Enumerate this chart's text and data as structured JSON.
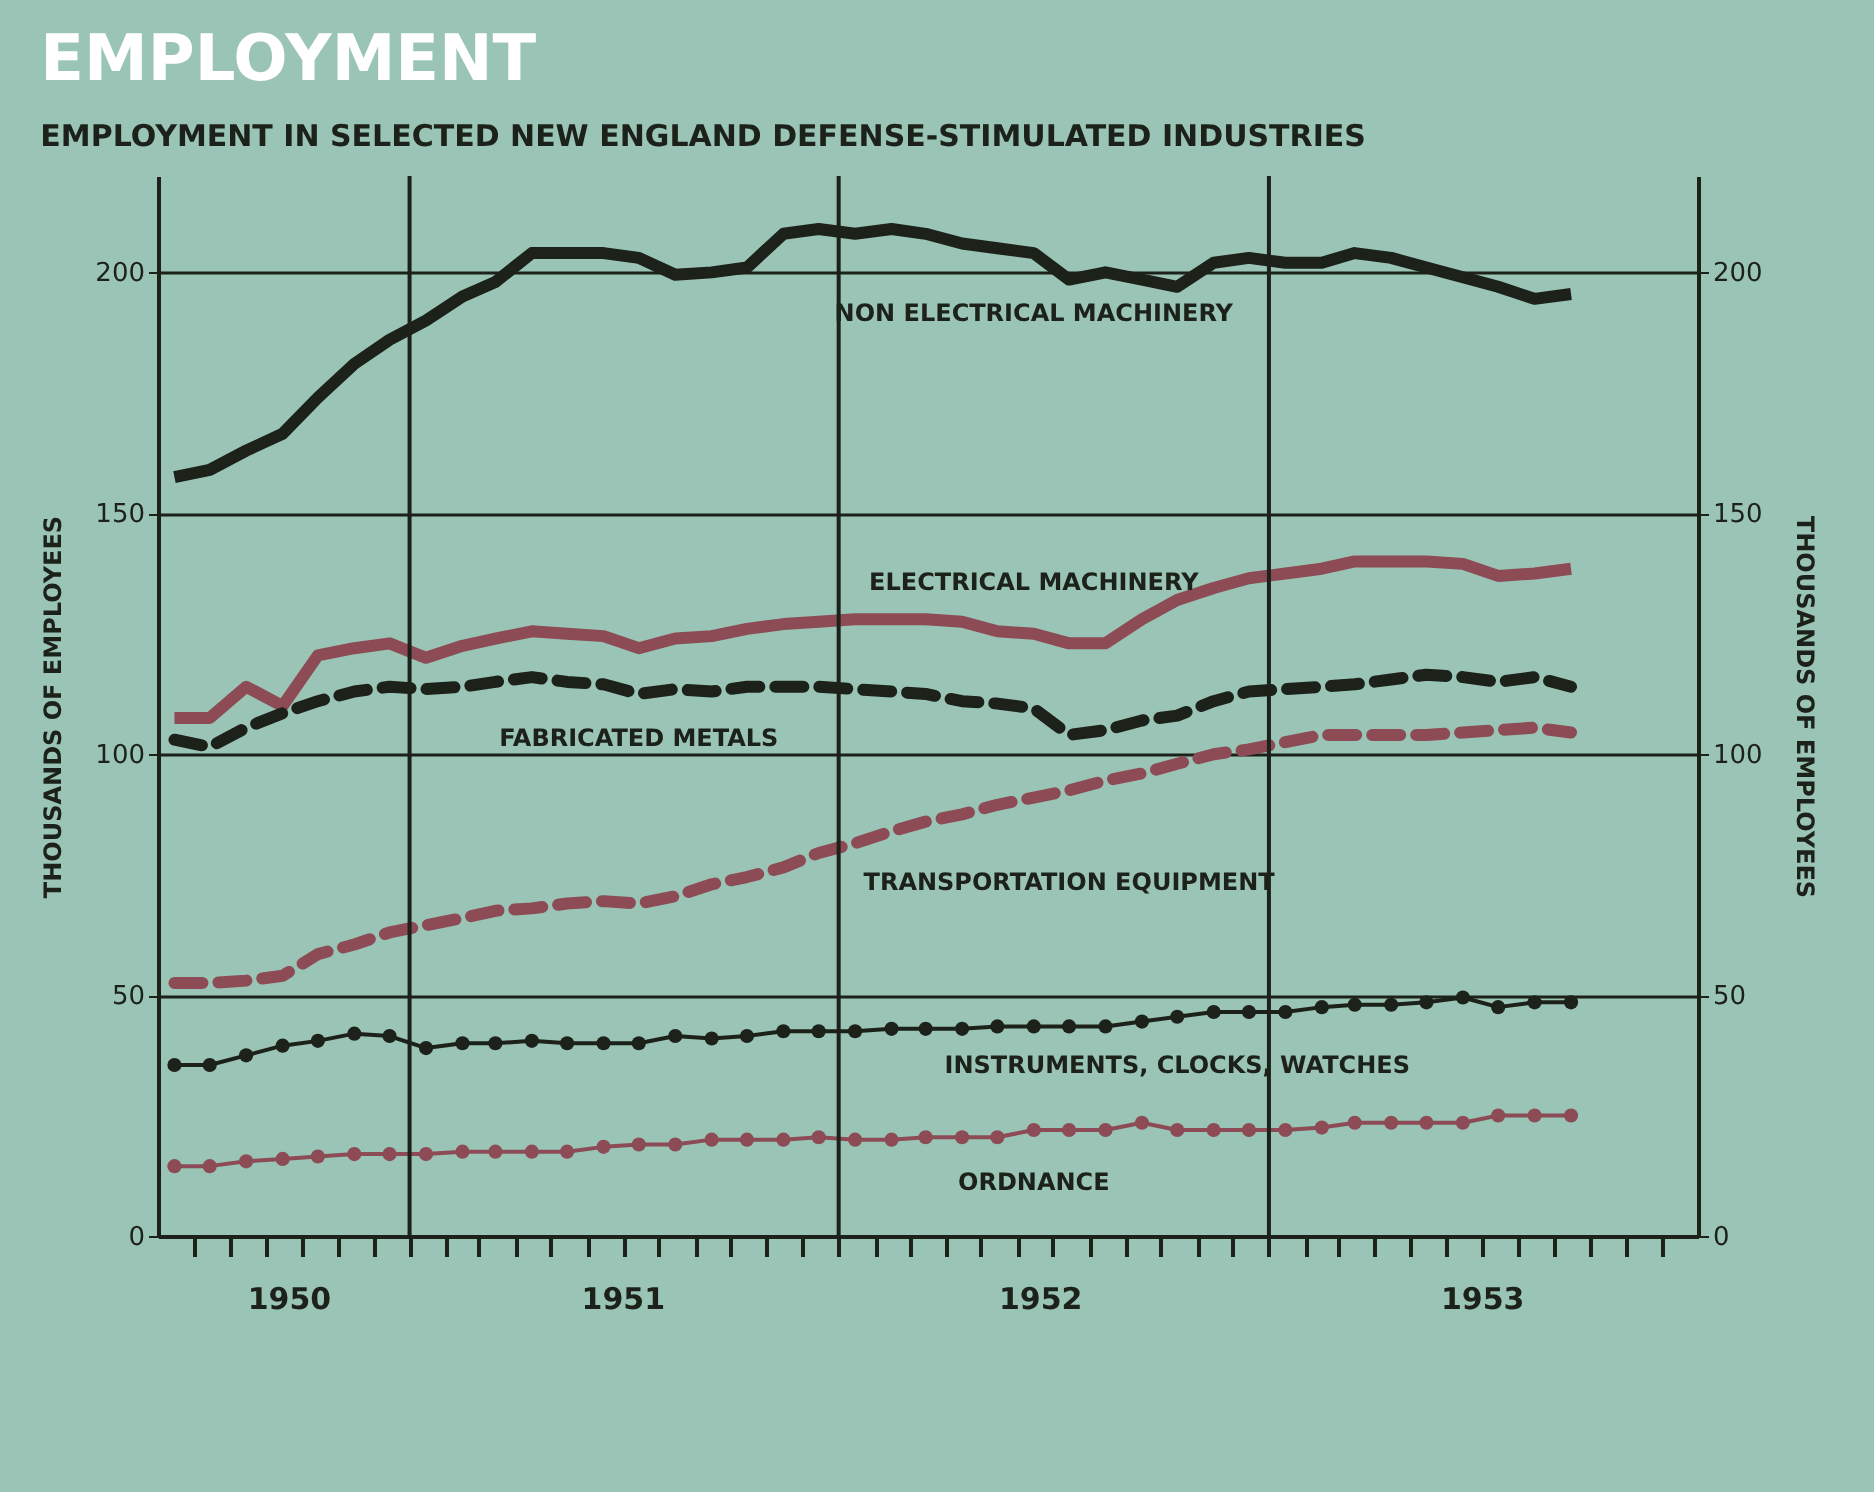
{
  "chart_data": {
    "type": "line",
    "title": "EMPLOYMENT",
    "subtitle": "EMPLOYMENT IN SELECTED NEW ENGLAND DEFENSE-STIMULATED INDUSTRIES",
    "ylabel": "THOUSANDS OF EMPLOYEES",
    "y2label": "THOUSANDS OF EMPLOYEES",
    "x": [
      "1950-06-15",
      "1950-07-15",
      "1950-08-15",
      "1950-09-15",
      "1950-10-15",
      "1950-11-15",
      "1950-12-15",
      "1951-01-15",
      "1951-02-15",
      "1951-03-15",
      "1951-04-15",
      "1951-05-15",
      "1951-06-15",
      "1951-07-15",
      "1951-08-15",
      "1951-09-15",
      "1951-10-15",
      "1951-11-15",
      "1951-12-15",
      "1952-01-15",
      "1952-02-15",
      "1952-03-15",
      "1952-04-15",
      "1952-05-15",
      "1952-06-15",
      "1952-07-15",
      "1952-08-15",
      "1952-09-15",
      "1952-10-15",
      "1952-11-15",
      "1952-12-15",
      "1953-01-15",
      "1953-02-15",
      "1953-03-15",
      "1953-04-15",
      "1953-05-15",
      "1953-06-15",
      "1953-07-15",
      "1953-08-15",
      "1953-09-15"
    ],
    "xlim": [
      "1950-06-01",
      "1954-01-01"
    ],
    "xticks": [
      {
        "value": "1950-07-01",
        "label": null
      },
      {
        "value": "1950-08-01",
        "label": null
      },
      {
        "value": "1950-09-01",
        "label": null
      },
      {
        "value": "1950-09-20",
        "label": "1950"
      },
      {
        "value": "1950-10-01",
        "label": null
      },
      {
        "value": "1950-11-01",
        "label": null
      },
      {
        "value": "1950-12-01",
        "label": null
      },
      {
        "value": "1951-01-01",
        "label": null
      },
      {
        "value": "1951-02-01",
        "label": null
      },
      {
        "value": "1951-03-01",
        "label": null
      },
      {
        "value": "1951-04-01",
        "label": null
      },
      {
        "value": "1951-05-01",
        "label": null
      },
      {
        "value": "1951-06-01",
        "label": null
      },
      {
        "value": "1951-07-01",
        "label": "1951"
      },
      {
        "value": "1951-07-02",
        "label": null
      },
      {
        "value": "1951-08-01",
        "label": null
      },
      {
        "value": "1951-09-01",
        "label": null
      },
      {
        "value": "1951-10-01",
        "label": null
      },
      {
        "value": "1951-11-01",
        "label": null
      },
      {
        "value": "1951-12-01",
        "label": null
      },
      {
        "value": "1952-01-01",
        "label": null
      },
      {
        "value": "1952-02-01",
        "label": null
      },
      {
        "value": "1952-03-01",
        "label": null
      },
      {
        "value": "1952-04-01",
        "label": null
      },
      {
        "value": "1952-05-01",
        "label": null
      },
      {
        "value": "1952-06-01",
        "label": null
      },
      {
        "value": "1952-06-20",
        "label": "1952"
      },
      {
        "value": "1952-07-01",
        "label": null
      },
      {
        "value": "1952-08-01",
        "label": null
      },
      {
        "value": "1952-09-01",
        "label": null
      },
      {
        "value": "1952-10-01",
        "label": null
      },
      {
        "value": "1952-11-01",
        "label": null
      },
      {
        "value": "1952-12-01",
        "label": null
      },
      {
        "value": "1953-01-01",
        "label": null
      },
      {
        "value": "1953-02-01",
        "label": null
      },
      {
        "value": "1953-03-01",
        "label": null
      },
      {
        "value": "1953-04-01",
        "label": null
      },
      {
        "value": "1953-05-01",
        "label": null
      },
      {
        "value": "1953-06-01",
        "label": null
      },
      {
        "value": "1953-07-01",
        "label": "1953"
      },
      {
        "value": "1953-07-02",
        "label": null
      },
      {
        "value": "1953-08-01",
        "label": null
      },
      {
        "value": "1953-09-01",
        "label": null
      },
      {
        "value": "1953-10-01",
        "label": null
      },
      {
        "value": "1953-11-01",
        "label": null
      },
      {
        "value": "1953-12-01",
        "label": null
      }
    ],
    "ylim": [
      0,
      220
    ],
    "yticks": [
      0,
      50,
      100,
      150,
      200
    ],
    "y2lim": [
      0,
      220
    ],
    "y2ticks": [
      0,
      50,
      100,
      150,
      200
    ],
    "grid": "y",
    "ref_lines": [
      {
        "axis": "x",
        "value": "1951-01-01"
      },
      {
        "axis": "x",
        "value": "1952-01-01"
      },
      {
        "axis": "x",
        "value": "1953-01-01"
      }
    ],
    "series": [
      {
        "name": "NON ELECTRICAL MACHINERY",
        "color": "#1c2119",
        "line_style": "solid",
        "values": [
          157.5,
          159,
          163,
          166.5,
          174,
          181,
          186,
          190,
          195,
          198,
          204,
          204,
          204,
          203,
          199.5,
          200,
          201,
          208,
          209,
          208,
          209,
          208,
          206,
          205,
          204,
          198.5,
          200,
          198.5,
          197,
          202,
          203,
          202,
          202,
          204,
          203,
          201,
          199,
          197,
          194.5,
          195.5
        ]
      },
      {
        "name": "ELECTRICAL MACHINERY",
        "color": "#8c4b55",
        "line_style": "solid",
        "values": [
          107.5,
          107.5,
          114,
          110,
          120.5,
          122,
          123,
          120,
          122.5,
          124,
          125.5,
          125,
          124.5,
          122,
          124,
          124.5,
          126,
          127,
          127.5,
          128,
          128,
          128,
          127.5,
          125.5,
          125,
          123,
          123,
          128,
          132,
          134.5,
          136.5,
          137.5,
          138.5,
          140,
          140,
          140,
          139.5,
          137,
          137.5,
          138.5
        ]
      },
      {
        "name": "FABRICATED METALS",
        "color": "#1c2119",
        "line_style": "dashed",
        "values": [
          103,
          101.5,
          105.5,
          108.5,
          111,
          113,
          114,
          113.5,
          114,
          115,
          116,
          115,
          114.5,
          112.5,
          113.5,
          113,
          114,
          114,
          114,
          113.5,
          113,
          112.5,
          111,
          110.5,
          109.5,
          104,
          105,
          107,
          108,
          111,
          113,
          113.5,
          114,
          114.5,
          115.5,
          116.5,
          116,
          115,
          116,
          114
        ]
      },
      {
        "name": "TRANSPORTATION EQUIPMENT",
        "color": "#8c4b55",
        "line_style": "dashed",
        "values": [
          52.5,
          52.5,
          53,
          54,
          58.5,
          60.5,
          63,
          64.5,
          66,
          67.5,
          68,
          69,
          69.5,
          69,
          70.5,
          73,
          74.5,
          76.5,
          79.5,
          81.5,
          84,
          86,
          87.5,
          89.5,
          91,
          92.5,
          94.5,
          96,
          98,
          100,
          101,
          102.5,
          104,
          104,
          104,
          104,
          104.5,
          105,
          105.5,
          104.5
        ]
      },
      {
        "name": "INSTRUMENTS, CLOCKS, WATCHES",
        "color": "#1c2119",
        "line_style": "solid",
        "marker": "circle",
        "values": [
          35.5,
          35.5,
          37.5,
          39.5,
          40.5,
          42,
          41.5,
          39,
          40,
          40,
          40.5,
          40,
          40,
          40,
          41.5,
          41,
          41.5,
          42.5,
          42.5,
          42.5,
          43,
          43,
          43,
          43.5,
          43.5,
          43.5,
          43.5,
          44.5,
          45.5,
          46.5,
          46.5,
          46.5,
          47.5,
          48,
          48,
          48.5,
          49.5,
          47.5,
          48.5,
          48.5
        ]
      },
      {
        "name": "ORDNANCE",
        "color": "#8c4b55",
        "line_style": "solid",
        "marker": "circle",
        "values": [
          14.5,
          14.5,
          15.5,
          16,
          16.5,
          17,
          17,
          17,
          17.5,
          17.5,
          17.5,
          17.5,
          18.5,
          19,
          19,
          20,
          20,
          20,
          20.5,
          20,
          20,
          20.5,
          20.5,
          20.5,
          22,
          22,
          22,
          23.5,
          22,
          22,
          22,
          22,
          22.5,
          23.5,
          23.5,
          23.5,
          23.5,
          25,
          25,
          25
        ]
      }
    ]
  }
}
